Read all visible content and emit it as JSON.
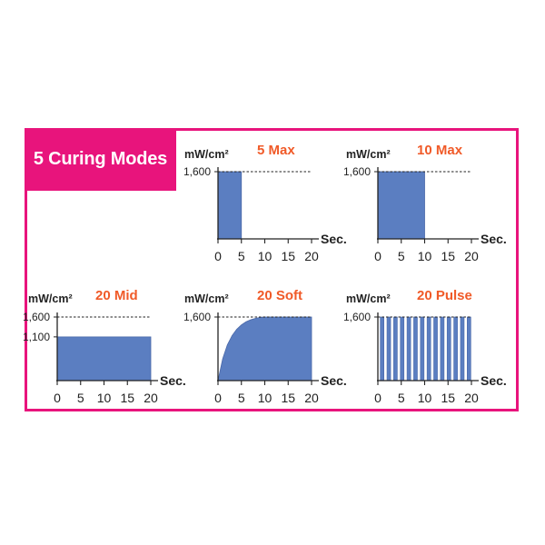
{
  "header": {
    "title": "5 Curing Modes"
  },
  "colors": {
    "accent": "#e8147c",
    "mode_label": "#f05a28",
    "fill": "#5b7ec1",
    "fill_stroke": "#4a68a8"
  },
  "chart_data": [
    {
      "type": "area",
      "title": "5 Max",
      "ylabel": "mW/cm²",
      "xlabel": "Sec.",
      "x_ticks": [
        "0",
        "5",
        "10",
        "15",
        "20"
      ],
      "y_ticks": [
        "1,600"
      ],
      "xlim": [
        0,
        20
      ],
      "ylim": [
        0,
        1600
      ],
      "reference_line": 1600,
      "x": [
        0,
        5
      ],
      "y": [
        1600,
        1600
      ]
    },
    {
      "type": "area",
      "title": "10 Max",
      "ylabel": "mW/cm²",
      "xlabel": "Sec.",
      "x_ticks": [
        "0",
        "5",
        "10",
        "15",
        "20"
      ],
      "y_ticks": [
        "1,600"
      ],
      "xlim": [
        0,
        20
      ],
      "ylim": [
        0,
        1600
      ],
      "reference_line": 1600,
      "x": [
        0,
        10
      ],
      "y": [
        1600,
        1600
      ]
    },
    {
      "type": "area",
      "title": "20 Mid",
      "ylabel": "mW/cm²",
      "xlabel": "Sec.",
      "x_ticks": [
        "0",
        "5",
        "10",
        "15",
        "20"
      ],
      "y_ticks": [
        "1,600",
        "1,100"
      ],
      "xlim": [
        0,
        20
      ],
      "ylim": [
        0,
        1600
      ],
      "reference_line": 1600,
      "x": [
        0,
        20
      ],
      "y": [
        1100,
        1100
      ]
    },
    {
      "type": "area",
      "title": "20 Soft",
      "ylabel": "mW/cm²",
      "xlabel": "Sec.",
      "x_ticks": [
        "0",
        "5",
        "10",
        "15",
        "20"
      ],
      "y_ticks": [
        "1,600"
      ],
      "xlim": [
        0,
        20
      ],
      "ylim": [
        0,
        1600
      ],
      "reference_line": 1600,
      "x": [
        0,
        1,
        2,
        3,
        4,
        5,
        6,
        7,
        8,
        9,
        10,
        20
      ],
      "y": [
        0,
        550,
        900,
        1130,
        1290,
        1400,
        1480,
        1530,
        1565,
        1590,
        1600,
        1600
      ]
    },
    {
      "type": "area",
      "title": "20 Pulse",
      "ylabel": "mW/cm²",
      "xlabel": "Sec.",
      "x_ticks": [
        "0",
        "5",
        "10",
        "15",
        "20"
      ],
      "y_ticks": [
        "1,600"
      ],
      "xlim": [
        0,
        20
      ],
      "ylim": [
        0,
        1600
      ],
      "reference_line": 1600,
      "pulse_count": 14,
      "pulse_value": 1600,
      "x": [
        0,
        20
      ]
    }
  ]
}
